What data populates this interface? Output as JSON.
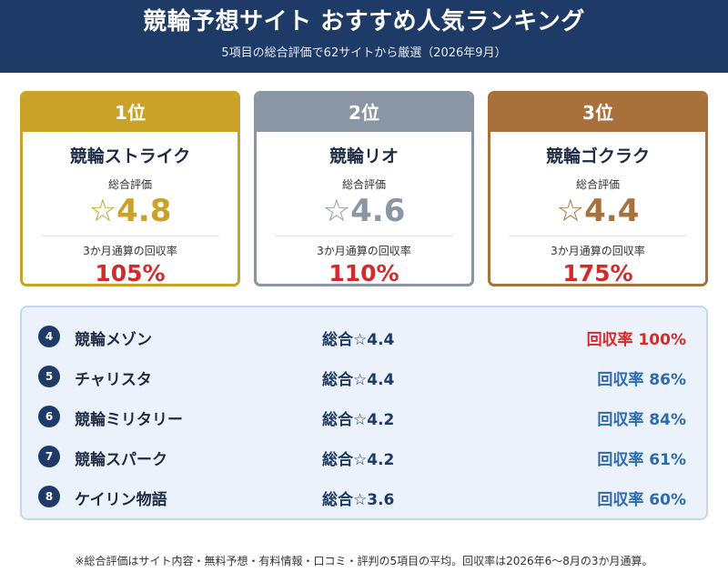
{
  "header": {
    "title": "競輪予想サイト おすすめ人気ランキング",
    "subtitle": "5項目の総合評価で62サイトから厳選（2026年9月）"
  },
  "top_cards": [
    {
      "rank": "1位",
      "name": "競輪ストライク",
      "score_label": "総合評価",
      "score": "☆4.8",
      "rr_label": "3か月通算の回収率",
      "rr": "105%"
    },
    {
      "rank": "2位",
      "name": "競輪リオ",
      "score_label": "総合評価",
      "score": "☆4.6",
      "rr_label": "3か月通算の回収率",
      "rr": "110%"
    },
    {
      "rank": "3位",
      "name": "競輪ゴクラク",
      "score_label": "総合評価",
      "score": "☆4.4",
      "rr_label": "3か月通算の回収率",
      "rr": "175%"
    }
  ],
  "list": [
    {
      "num": "4",
      "name": "競輪メゾン",
      "score": "総合☆4.4",
      "rate": "回収率 100%"
    },
    {
      "num": "5",
      "name": "チャリスタ",
      "score": "総合☆4.4",
      "rate": "回収率 86%"
    },
    {
      "num": "6",
      "name": "競輪ミリタリー",
      "score": "総合☆4.2",
      "rate": "回収率 84%"
    },
    {
      "num": "7",
      "name": "競輪スパーク",
      "score": "総合☆4.2",
      "rate": "回収率 61%"
    },
    {
      "num": "8",
      "name": "ケイリン物語",
      "score": "総合☆3.6",
      "rate": "回収率 60%"
    }
  ],
  "footnote": "※総合評価はサイト内容・無料予想・有料情報・口コミ・評判の5項目の平均。回収率は2026年6〜8月の3か月通算。",
  "colors": {
    "header_bg": "#1e3a66",
    "gold": "#c9a227",
    "silver": "#8a96a3",
    "bronze": "#a8703a",
    "highlight_red": "#d42a2a",
    "rate_blue": "#2c6bb0"
  }
}
